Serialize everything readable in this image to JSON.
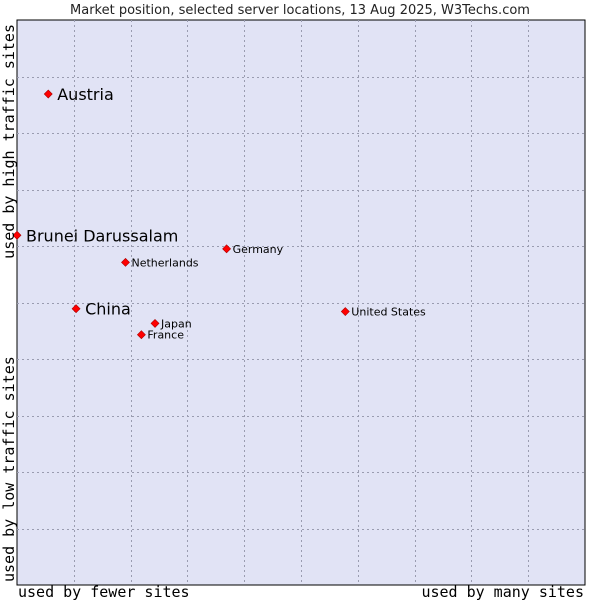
{
  "chart_data": {
    "type": "scatter",
    "title": "Market position, selected server locations, 13 Aug 2025, W3Techs.com",
    "xlabel_low": "used by fewer sites",
    "xlabel_high": "used by many sites",
    "ylabel_low": "used by low traffic sites",
    "ylabel_high": "used by high traffic sites",
    "xlim": [
      0,
      100
    ],
    "ylim": [
      0,
      100
    ],
    "grid": true,
    "marker_color": "#ff0000",
    "plot_background": "#e1e3f5",
    "points": [
      {
        "name": "Austria",
        "x": 5.5,
        "y": 86.9,
        "emphasis": true
      },
      {
        "name": "Brunei Darussalam",
        "x": 0.0,
        "y": 61.9,
        "emphasis": true
      },
      {
        "name": "China",
        "x": 10.4,
        "y": 48.9,
        "emphasis": true
      },
      {
        "name": "Germany",
        "x": 36.9,
        "y": 59.5,
        "emphasis": false
      },
      {
        "name": "Netherlands",
        "x": 19.1,
        "y": 57.1,
        "emphasis": false
      },
      {
        "name": "Japan",
        "x": 24.3,
        "y": 46.3,
        "emphasis": false
      },
      {
        "name": "France",
        "x": 21.9,
        "y": 44.3,
        "emphasis": false
      },
      {
        "name": "United States",
        "x": 57.8,
        "y": 48.4,
        "emphasis": false
      }
    ]
  }
}
